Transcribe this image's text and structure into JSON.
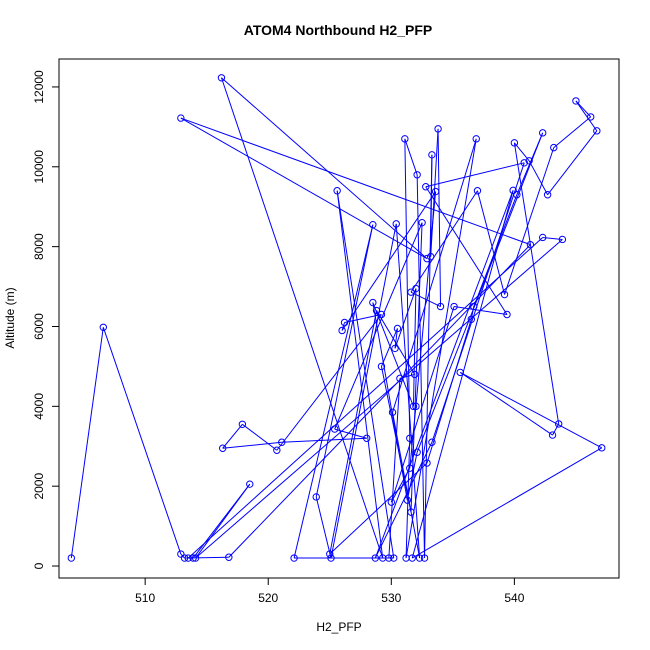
{
  "chart_data": {
    "type": "line",
    "title": "ATOM4 Northbound H2_PFP",
    "xlabel": "H2_PFP",
    "ylabel": "Altitude (m)",
    "xlim": [
      503,
      548.5
    ],
    "ylim": [
      -300,
      12700
    ],
    "x_ticks": [
      510,
      520,
      530,
      540
    ],
    "y_ticks": [
      0,
      2000,
      4000,
      6000,
      8000,
      10000,
      12000
    ],
    "series": [
      {
        "color": "#0000ff",
        "marker": "open-circle",
        "points": [
          [
            504.0,
            200
          ],
          [
            506.6,
            5980
          ],
          [
            512.9,
            300
          ],
          [
            513.2,
            200
          ],
          [
            513.9,
            200
          ],
          [
            518.5,
            2050
          ],
          [
            514.1,
            200
          ],
          [
            543.9,
            8180
          ],
          [
            542.3,
            8230
          ],
          [
            513.5,
            200
          ],
          [
            516.8,
            220
          ],
          [
            541.3,
            8050
          ],
          [
            512.9,
            11220
          ],
          [
            532.9,
            7700
          ],
          [
            516.2,
            12230
          ],
          [
            529.3,
            200
          ],
          [
            525.6,
            9400
          ],
          [
            530.2,
            200
          ],
          [
            522.1,
            200
          ],
          [
            528.5,
            8550
          ],
          [
            523.9,
            1730
          ],
          [
            525.1,
            200
          ],
          [
            530.4,
            8570
          ],
          [
            532.3,
            200
          ],
          [
            530.1,
            3850
          ],
          [
            536.9,
            10700
          ],
          [
            531.2,
            200
          ],
          [
            531.5,
            3200
          ],
          [
            531.1,
            10700
          ],
          [
            532.1,
            9800
          ],
          [
            532.7,
            200
          ],
          [
            533.3,
            10300
          ],
          [
            533.2,
            7750
          ],
          [
            533.8,
            10950
          ],
          [
            534.0,
            6500
          ],
          [
            531.6,
            6860
          ],
          [
            537.0,
            9400
          ],
          [
            539.2,
            6800
          ],
          [
            543.2,
            10480
          ],
          [
            546.2,
            11250
          ],
          [
            545.0,
            11650
          ],
          [
            546.7,
            10900
          ],
          [
            542.7,
            9300
          ],
          [
            541.2,
            10150
          ],
          [
            540.0,
            10600
          ],
          [
            543.6,
            3560
          ],
          [
            543.1,
            3280
          ],
          [
            535.6,
            4850
          ],
          [
            547.1,
            2960
          ],
          [
            531.7,
            200
          ],
          [
            539.9,
            9410
          ],
          [
            528.7,
            200
          ],
          [
            533.3,
            3100
          ],
          [
            540.8,
            10100
          ],
          [
            532.8,
            9500
          ],
          [
            539.4,
            6300
          ],
          [
            535.1,
            6500
          ],
          [
            530.0,
            1600
          ],
          [
            531.5,
            2450
          ],
          [
            532.0,
            4000
          ],
          [
            533.6,
            9380
          ],
          [
            526.0,
            5900
          ],
          [
            526.2,
            6100
          ],
          [
            529.2,
            6300
          ],
          [
            520.7,
            2900
          ],
          [
            517.9,
            3550
          ],
          [
            516.3,
            2950
          ],
          [
            521.1,
            3100
          ],
          [
            528.0,
            3200
          ],
          [
            525.4,
            3430
          ],
          [
            532.5,
            8600
          ],
          [
            531.6,
            1350
          ],
          [
            529.2,
            5000
          ],
          [
            530.5,
            5950
          ],
          [
            530.3,
            5450
          ],
          [
            532.0,
            6950
          ],
          [
            531.8,
            4000
          ],
          [
            528.5,
            6600
          ],
          [
            531.3,
            1650
          ],
          [
            532.1,
            2850
          ],
          [
            542.3,
            10850
          ],
          [
            540.2,
            9300
          ],
          [
            536.7,
            6500
          ],
          [
            536.5,
            6180
          ],
          [
            532.9,
            2580
          ],
          [
            525.0,
            300
          ],
          [
            528.8,
            6400
          ],
          [
            531.9,
            4800
          ],
          [
            530.7,
            4700
          ],
          [
            529.8,
            200
          ]
        ]
      }
    ]
  }
}
